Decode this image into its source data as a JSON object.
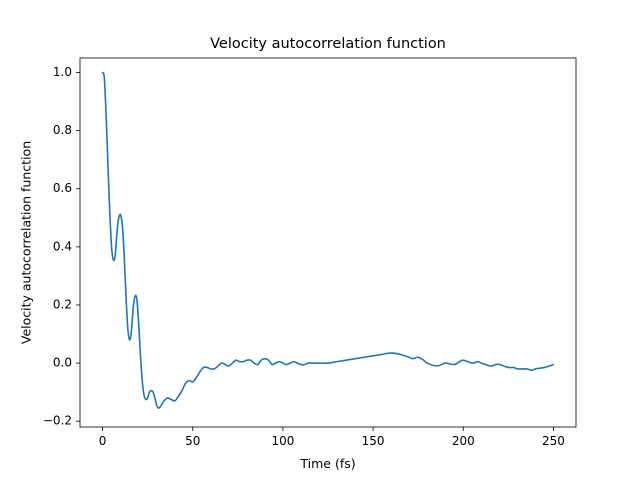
{
  "chart_data": {
    "type": "line",
    "title": "Velocity autocorrelation function",
    "xlabel": "Time (fs)",
    "ylabel": "Velocity autocorrelation function",
    "xlim": [
      -12.5,
      262.5
    ],
    "ylim": [
      -0.22,
      1.05
    ],
    "xticks": [
      0,
      50,
      100,
      150,
      200,
      250
    ],
    "xtick_labels": [
      "0",
      "50",
      "100",
      "150",
      "200",
      "250"
    ],
    "yticks": [
      -0.2,
      0.0,
      0.2,
      0.4,
      0.6,
      0.8,
      1.0
    ],
    "ytick_labels": [
      "−0.2",
      "0.0",
      "0.2",
      "0.4",
      "0.6",
      "0.8",
      "1.0"
    ],
    "grid": false,
    "series": [
      {
        "color": "#1f77b4",
        "x": [
          0,
          1,
          2,
          3,
          4,
          5,
          6,
          7,
          8,
          9,
          10,
          11,
          12,
          13,
          14,
          15,
          16,
          17,
          18,
          19,
          20,
          21,
          22,
          23,
          24,
          25,
          26,
          27,
          28,
          29,
          30,
          31,
          32,
          33,
          34,
          35,
          36,
          38,
          40,
          42,
          44,
          46,
          48,
          50,
          52,
          54,
          56,
          58,
          60,
          62,
          64,
          66,
          68,
          70,
          72,
          74,
          76,
          78,
          80,
          82,
          84,
          86,
          88,
          90,
          92,
          94,
          96,
          98,
          100,
          102,
          104,
          106,
          108,
          110,
          112,
          114,
          116,
          118,
          120,
          125,
          130,
          135,
          140,
          145,
          150,
          155,
          160,
          165,
          170,
          172,
          175,
          178,
          180,
          185,
          188,
          190,
          195,
          198,
          200,
          205,
          208,
          210,
          215,
          218,
          220,
          225,
          228,
          230,
          235,
          238,
          240,
          245,
          250
        ],
        "y": [
          1.0,
          0.98,
          0.85,
          0.68,
          0.52,
          0.4,
          0.355,
          0.37,
          0.45,
          0.5,
          0.51,
          0.47,
          0.37,
          0.23,
          0.12,
          0.08,
          0.11,
          0.19,
          0.23,
          0.22,
          0.14,
          0.03,
          -0.06,
          -0.11,
          -0.125,
          -0.12,
          -0.1,
          -0.095,
          -0.1,
          -0.12,
          -0.145,
          -0.155,
          -0.15,
          -0.14,
          -0.13,
          -0.125,
          -0.12,
          -0.125,
          -0.13,
          -0.115,
          -0.095,
          -0.07,
          -0.06,
          -0.065,
          -0.05,
          -0.03,
          -0.015,
          -0.015,
          -0.02,
          -0.02,
          -0.01,
          0.0,
          -0.005,
          -0.01,
          0.0,
          0.01,
          0.005,
          0.005,
          0.01,
          0.01,
          0.0,
          -0.005,
          0.01,
          0.015,
          0.01,
          -0.005,
          0.0,
          0.005,
          0.0,
          -0.005,
          0.0,
          0.005,
          0.0,
          -0.005,
          -0.005,
          0.0,
          0.0,
          0.0,
          0.0,
          0.0,
          0.005,
          0.01,
          0.015,
          0.02,
          0.025,
          0.03,
          0.035,
          0.03,
          0.02,
          0.015,
          0.02,
          0.01,
          0.0,
          -0.01,
          -0.005,
          0.0,
          -0.005,
          0.005,
          0.01,
          0.0,
          0.005,
          0.0,
          -0.01,
          -0.005,
          -0.005,
          -0.015,
          -0.015,
          -0.02,
          -0.02,
          -0.025,
          -0.02,
          -0.015,
          -0.005
        ]
      }
    ]
  }
}
